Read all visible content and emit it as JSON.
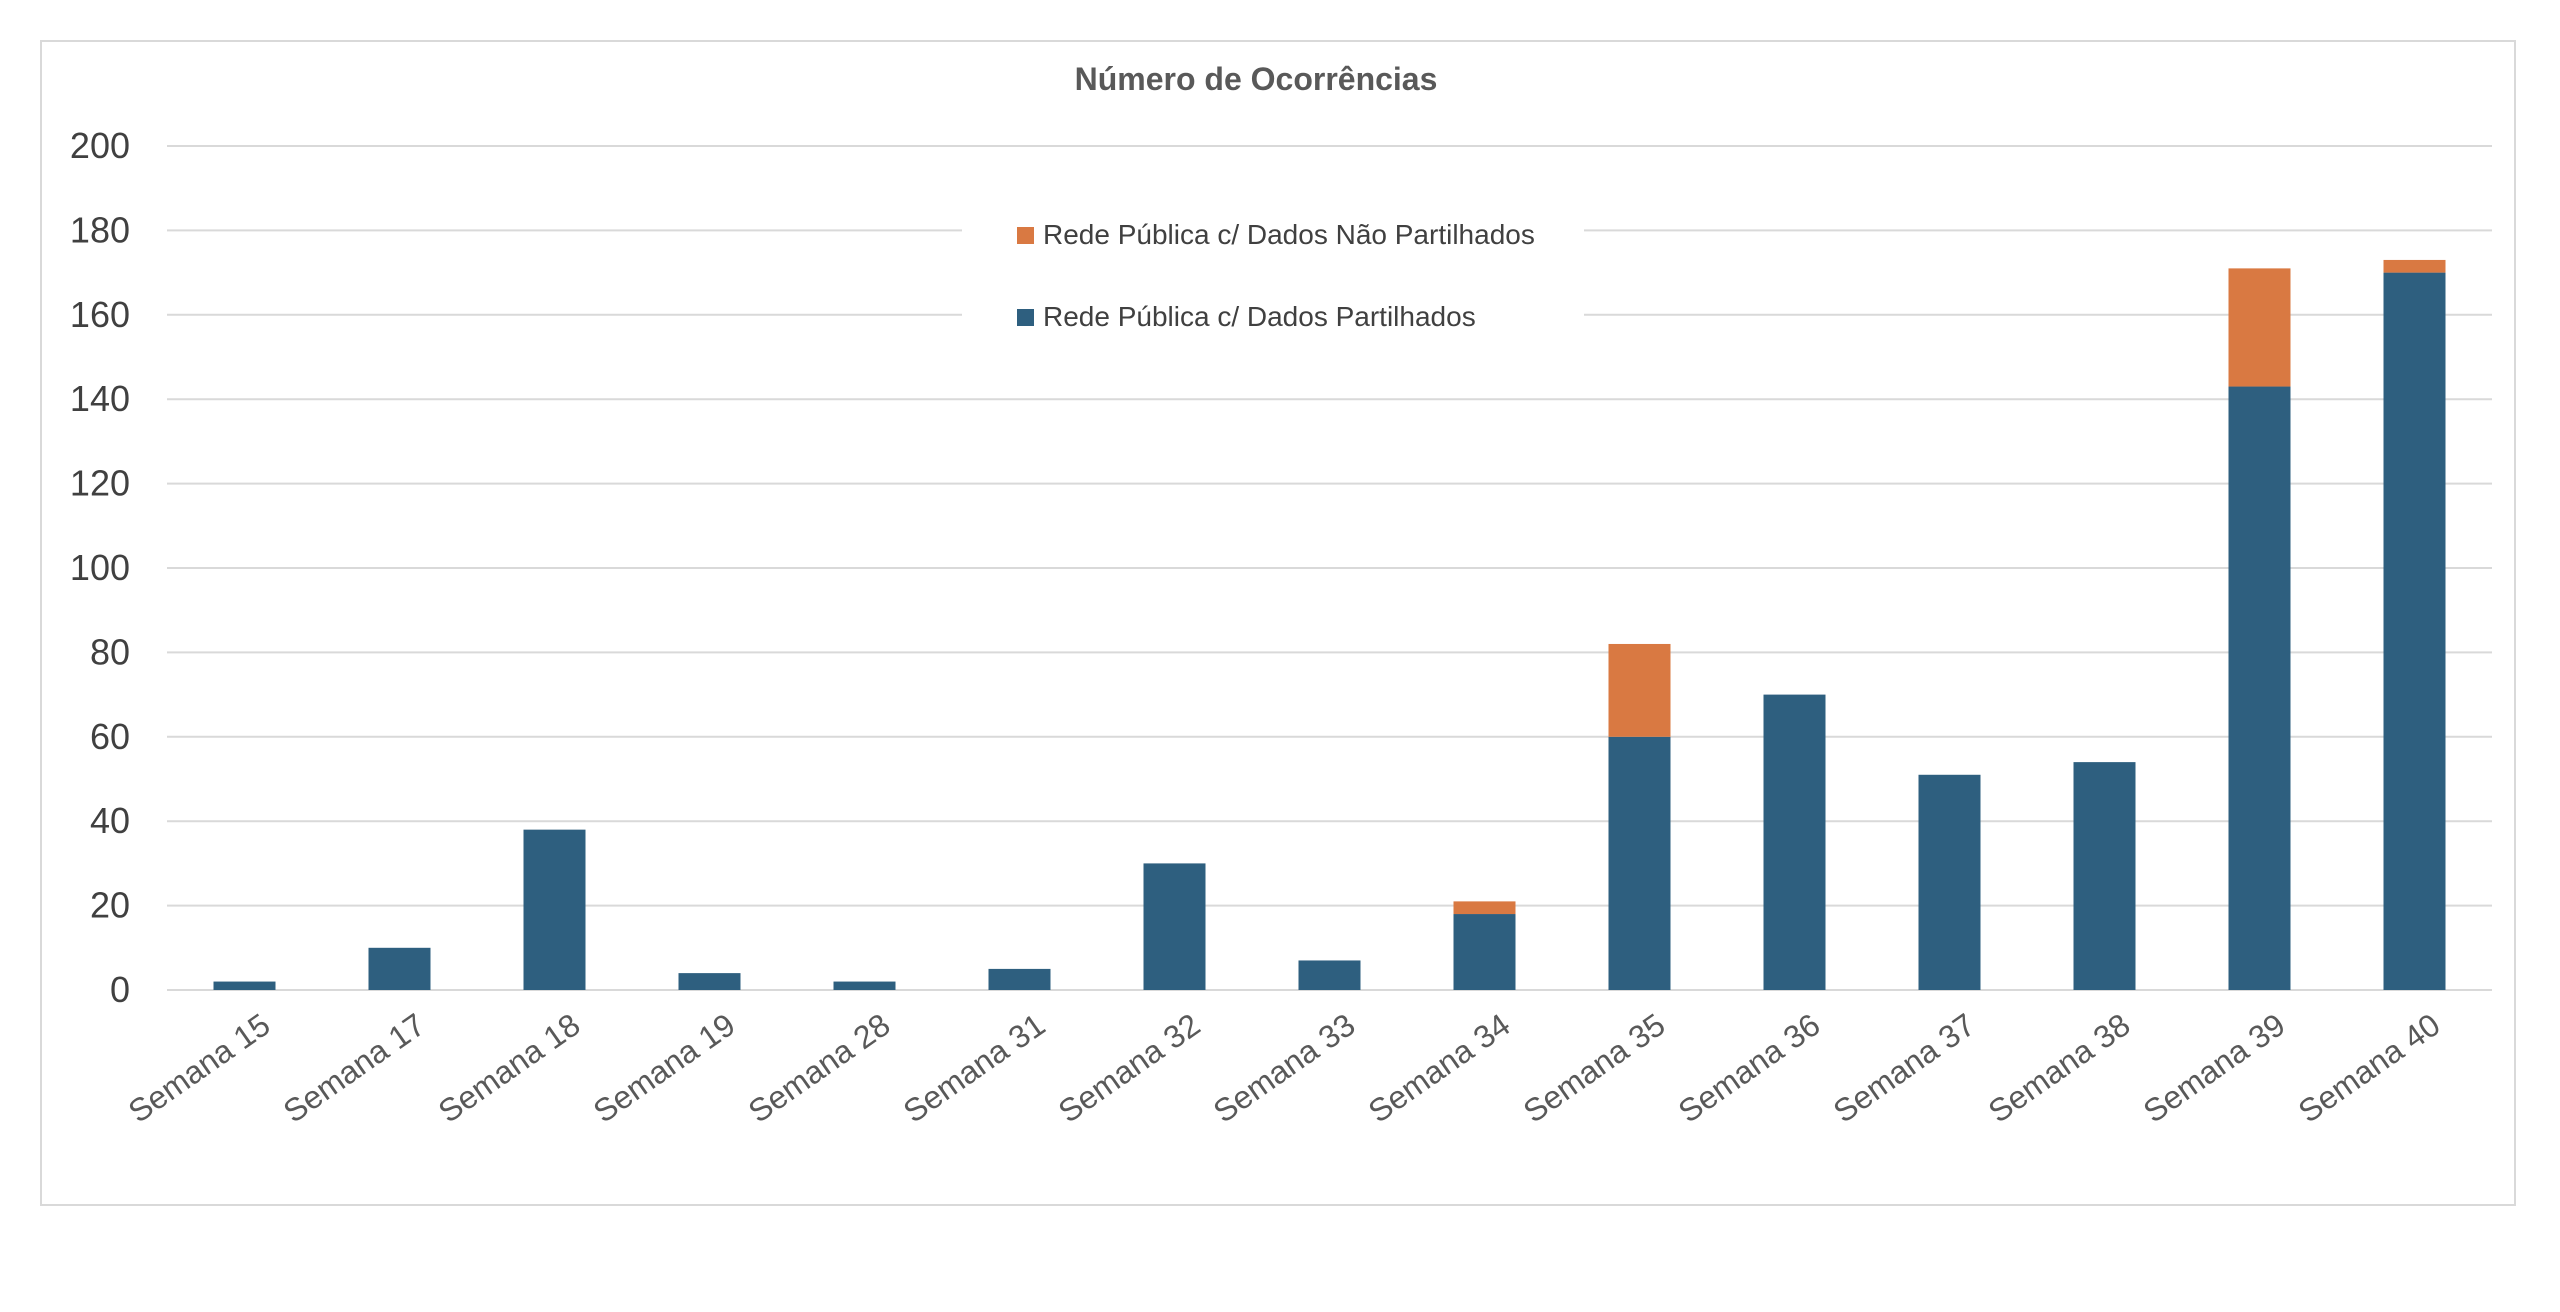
{
  "chart_data": {
    "type": "bar",
    "stacked": true,
    "title": "Número de Ocorrências",
    "xlabel": "",
    "ylabel": "",
    "ylim": [
      0,
      200
    ],
    "yticks": [
      0,
      20,
      40,
      60,
      80,
      100,
      120,
      140,
      160,
      180,
      200
    ],
    "grid": true,
    "legend_position": "top-center",
    "categories": [
      "Semana 15",
      "Semana 17",
      "Semana 18",
      "Semana 19",
      "Semana 28",
      "Semana 31",
      "Semana 32",
      "Semana 33",
      "Semana 34",
      "Semana 35",
      "Semana 36",
      "Semana 37",
      "Semana 38",
      "Semana 39",
      "Semana 40"
    ],
    "series": [
      {
        "name": "Rede Pública c/ Dados Partilhados",
        "color": "#2e5f7f",
        "values": [
          2,
          10,
          38,
          4,
          2,
          5,
          30,
          7,
          18,
          60,
          70,
          51,
          54,
          143,
          170
        ]
      },
      {
        "name": "Rede Pública c/  Dados Não Partilhados",
        "color": "#d97942",
        "values": [
          0,
          0,
          0,
          0,
          0,
          0,
          0,
          0,
          3,
          22,
          0,
          0,
          0,
          28,
          3
        ]
      }
    ],
    "legend_order": [
      1,
      0
    ]
  }
}
